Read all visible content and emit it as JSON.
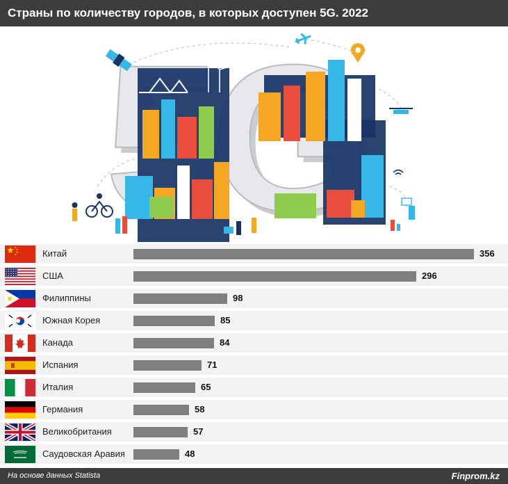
{
  "header": {
    "title": "Страны по количеству городов, в которых доступен 5G. 2022"
  },
  "illustration": {
    "text": "5G"
  },
  "chart_data": {
    "type": "bar",
    "orientation": "horizontal",
    "title": "Страны по количеству городов, в которых доступен 5G. 2022",
    "categories": [
      "Китай",
      "США",
      "Филиппины",
      "Южная Корея",
      "Канада",
      "Испания",
      "Италия",
      "Германия",
      "Великобритания",
      "Саудовская Аравия"
    ],
    "values": [
      356,
      296,
      98,
      85,
      84,
      71,
      65,
      58,
      57,
      48
    ],
    "flags": [
      "china",
      "usa",
      "philippines",
      "south-korea",
      "canada",
      "spain",
      "italy",
      "germany",
      "uk",
      "saudi-arabia"
    ],
    "bar_color": "#7f7f7f",
    "xlim": [
      0,
      356
    ]
  },
  "footer": {
    "source": "На основе данных Statista",
    "brand": "Finprom.kz"
  }
}
